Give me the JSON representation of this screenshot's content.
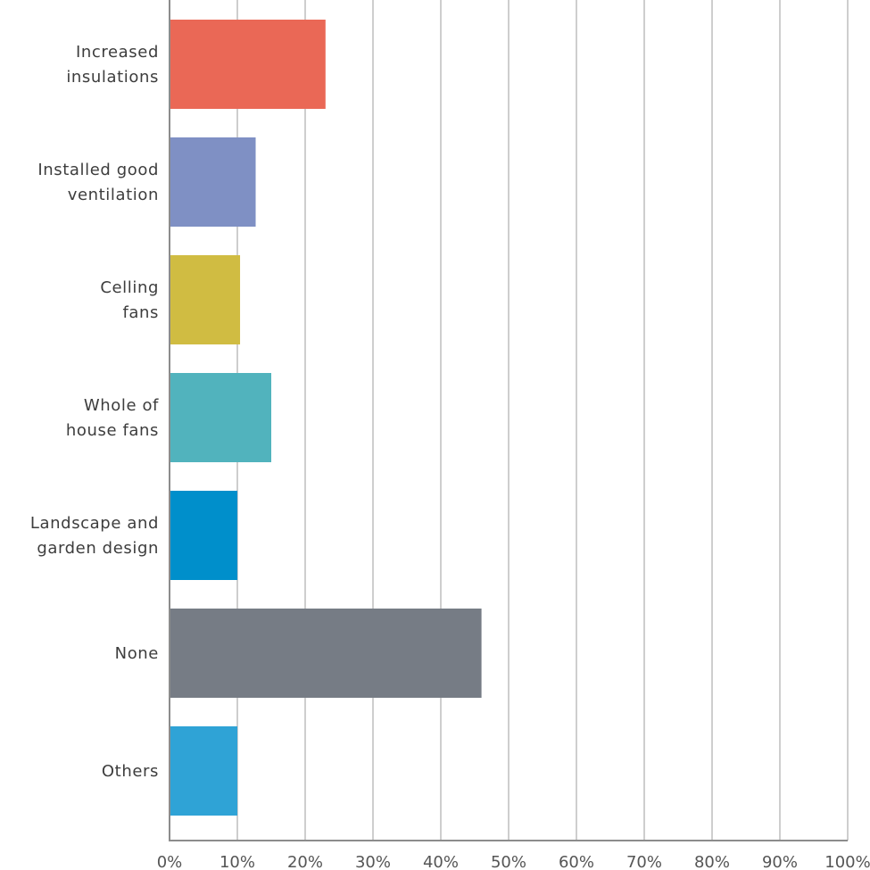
{
  "chart_data": {
    "type": "bar",
    "orientation": "horizontal",
    "categories": [
      [
        "Increased",
        "insulations"
      ],
      [
        "Installed good",
        "ventilation"
      ],
      [
        "Celling",
        "fans"
      ],
      [
        "Whole of",
        "house fans"
      ],
      [
        "Landscape and",
        "garden design"
      ],
      [
        "None"
      ],
      [
        "Others"
      ]
    ],
    "values": [
      23,
      12.7,
      10.4,
      15,
      10,
      46,
      10
    ],
    "colors": [
      "#ea6856",
      "#7f90c4",
      "#d0bc42",
      "#51b3bd",
      "#008fcb",
      "#767c85",
      "#2fa3d6"
    ],
    "xlim": [
      0,
      100
    ],
    "xticks": [
      0,
      10,
      20,
      30,
      40,
      50,
      60,
      70,
      80,
      90,
      100
    ],
    "tick_labels": [
      "0%",
      "10%",
      "20%",
      "30%",
      "40%",
      "50%",
      "60%",
      "70%",
      "80%",
      "90%",
      "100%"
    ],
    "grid": true,
    "title": "",
    "xlabel": "",
    "ylabel": ""
  }
}
